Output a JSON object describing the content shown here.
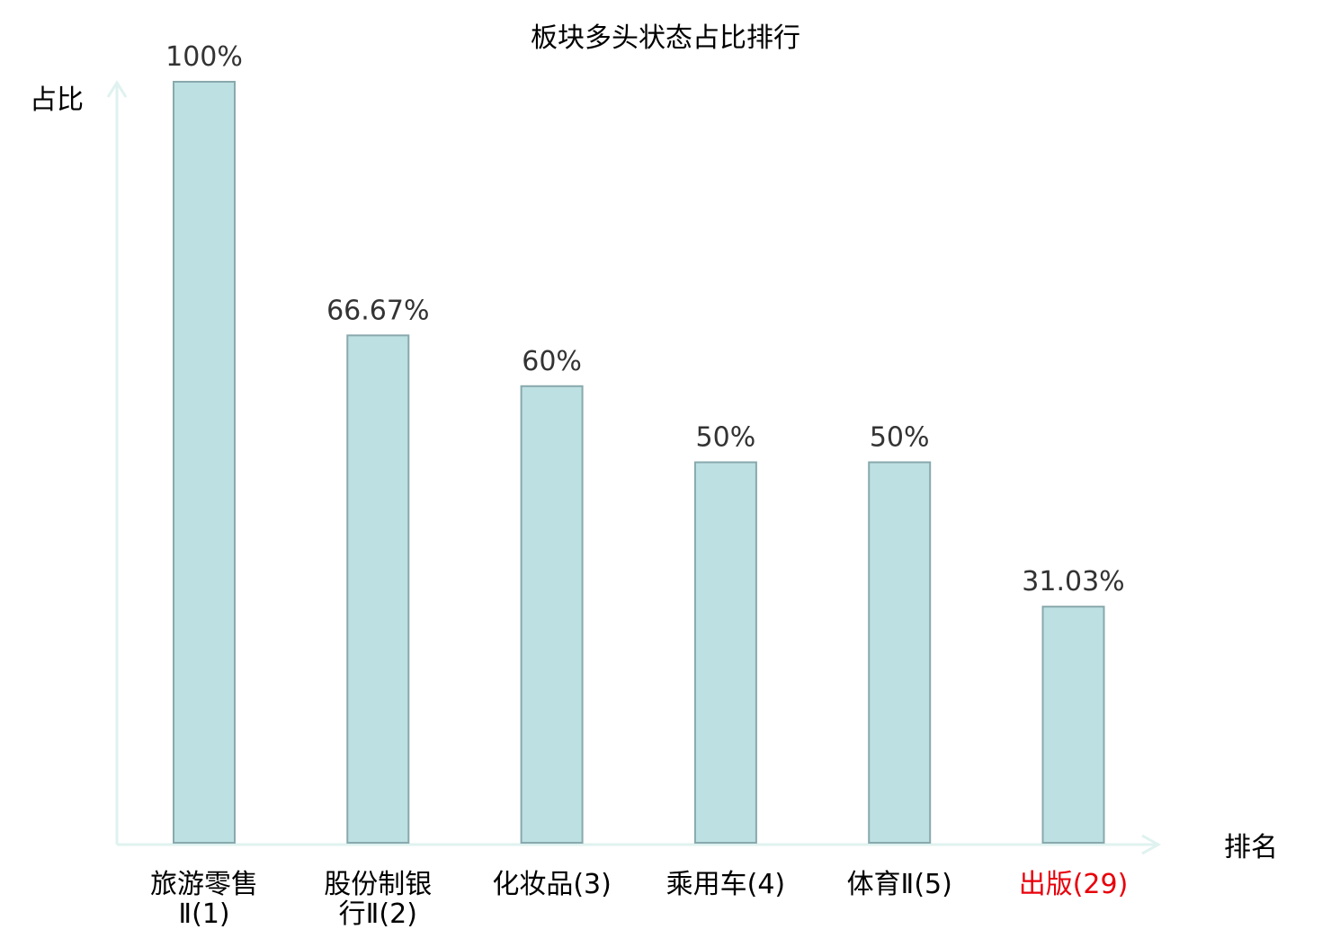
{
  "chart_data": {
    "type": "bar",
    "title": "板块多头状态占比排行",
    "ylabel": "占比",
    "xlabel": "排名",
    "ylim": [
      0,
      100
    ],
    "grid": false,
    "legend": "none",
    "categories": [
      {
        "lines": [
          "旅游零售",
          "Ⅱ(1)"
        ],
        "highlight": false
      },
      {
        "lines": [
          "股份制银",
          "行Ⅱ(2)"
        ],
        "highlight": false
      },
      {
        "lines": [
          "化妆品(3)"
        ],
        "highlight": false
      },
      {
        "lines": [
          "乘用车(4)"
        ],
        "highlight": false
      },
      {
        "lines": [
          "体育Ⅱ(5)"
        ],
        "highlight": false
      },
      {
        "lines": [
          "出版(29)"
        ],
        "highlight": true
      }
    ],
    "values": [
      100,
      66.67,
      60,
      50,
      50,
      31.03
    ],
    "value_labels": [
      "100%",
      "66.67%",
      "60%",
      "50%",
      "50%",
      "31.03%"
    ],
    "colors": {
      "bar_fill": "#bde0e2",
      "bar_stroke": "#88a9ad",
      "axis": "#dff2ef",
      "text": "#000000",
      "value_text": "#333333",
      "highlight_text": "#e8000b"
    }
  }
}
